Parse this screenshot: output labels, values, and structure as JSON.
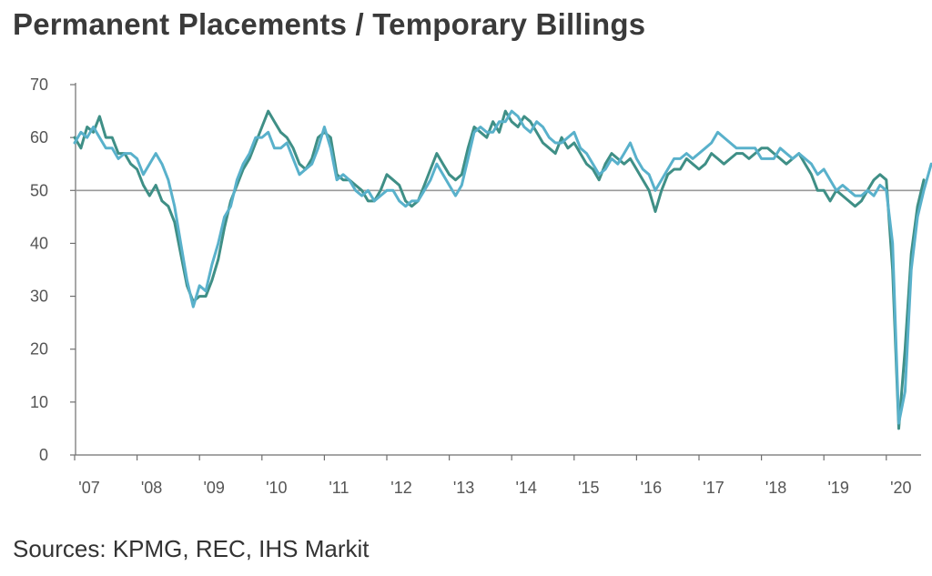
{
  "title": "Permanent Placements / Temporary Billings",
  "source": "Sources: KPMG, REC, IHS Markit",
  "colors": {
    "permanent": "#3f8f86",
    "temporary": "#59b1cb",
    "reference": "#9a9a9a",
    "axis": "#6f6f6f"
  },
  "chart_data": {
    "type": "line",
    "title": "Permanent Placements / Temporary Billings",
    "xlabel": "",
    "ylabel": "",
    "ylim": [
      0,
      70
    ],
    "yticks": [
      0,
      10,
      20,
      30,
      40,
      50,
      60,
      70
    ],
    "xlim": [
      2007.0,
      2020.72
    ],
    "xticks": [
      {
        "value": 2007,
        "label": "'07"
      },
      {
        "value": 2008,
        "label": "'08"
      },
      {
        "value": 2009,
        "label": "'09"
      },
      {
        "value": 2010,
        "label": "'10"
      },
      {
        "value": 2011,
        "label": "'11"
      },
      {
        "value": 2012,
        "label": "'12"
      },
      {
        "value": 2013,
        "label": "'13"
      },
      {
        "value": 2014,
        "label": "'14"
      },
      {
        "value": 2015,
        "label": "'15"
      },
      {
        "value": 2016,
        "label": "'16"
      },
      {
        "value": 2017,
        "label": "'17"
      },
      {
        "value": 2018,
        "label": "'18"
      },
      {
        "value": 2019,
        "label": "'19"
      },
      {
        "value": 2020,
        "label": "'20"
      }
    ],
    "reference_line": 50,
    "grid": false,
    "legend": "none",
    "series": [
      {
        "color": "#3f8f86",
        "points": [
          [
            2007.0,
            60
          ],
          [
            2007.1,
            58
          ],
          [
            2007.2,
            62
          ],
          [
            2007.3,
            61
          ],
          [
            2007.4,
            64
          ],
          [
            2007.5,
            60
          ],
          [
            2007.6,
            60
          ],
          [
            2007.7,
            57
          ],
          [
            2007.8,
            57
          ],
          [
            2007.9,
            55
          ],
          [
            2008.0,
            54
          ],
          [
            2008.1,
            51
          ],
          [
            2008.2,
            49
          ],
          [
            2008.3,
            51
          ],
          [
            2008.4,
            48
          ],
          [
            2008.5,
            47
          ],
          [
            2008.6,
            44
          ],
          [
            2008.7,
            38
          ],
          [
            2008.8,
            32
          ],
          [
            2008.9,
            29
          ],
          [
            2009.0,
            30
          ],
          [
            2009.1,
            30
          ],
          [
            2009.2,
            33
          ],
          [
            2009.3,
            37
          ],
          [
            2009.4,
            43
          ],
          [
            2009.5,
            48
          ],
          [
            2009.6,
            51
          ],
          [
            2009.7,
            54
          ],
          [
            2009.8,
            56
          ],
          [
            2009.9,
            59
          ],
          [
            2010.0,
            62
          ],
          [
            2010.1,
            65
          ],
          [
            2010.2,
            63
          ],
          [
            2010.3,
            61
          ],
          [
            2010.4,
            60
          ],
          [
            2010.5,
            58
          ],
          [
            2010.6,
            55
          ],
          [
            2010.7,
            54
          ],
          [
            2010.8,
            56
          ],
          [
            2010.9,
            60
          ],
          [
            2011.0,
            61
          ],
          [
            2011.1,
            60
          ],
          [
            2011.2,
            53
          ],
          [
            2011.3,
            52
          ],
          [
            2011.4,
            52
          ],
          [
            2011.5,
            51
          ],
          [
            2011.6,
            50
          ],
          [
            2011.7,
            48
          ],
          [
            2011.8,
            48
          ],
          [
            2011.9,
            50
          ],
          [
            2012.0,
            53
          ],
          [
            2012.1,
            52
          ],
          [
            2012.2,
            51
          ],
          [
            2012.3,
            48
          ],
          [
            2012.4,
            47
          ],
          [
            2012.5,
            48
          ],
          [
            2012.6,
            51
          ],
          [
            2012.7,
            54
          ],
          [
            2012.8,
            57
          ],
          [
            2012.9,
            55
          ],
          [
            2013.0,
            53
          ],
          [
            2013.1,
            52
          ],
          [
            2013.2,
            53
          ],
          [
            2013.3,
            58
          ],
          [
            2013.4,
            62
          ],
          [
            2013.5,
            61
          ],
          [
            2013.6,
            60
          ],
          [
            2013.7,
            63
          ],
          [
            2013.8,
            61
          ],
          [
            2013.9,
            65
          ],
          [
            2014.0,
            63
          ],
          [
            2014.1,
            62
          ],
          [
            2014.2,
            64
          ],
          [
            2014.3,
            63
          ],
          [
            2014.4,
            61
          ],
          [
            2014.5,
            59
          ],
          [
            2014.6,
            58
          ],
          [
            2014.7,
            57
          ],
          [
            2014.8,
            60
          ],
          [
            2014.9,
            58
          ],
          [
            2015.0,
            59
          ],
          [
            2015.1,
            57
          ],
          [
            2015.2,
            55
          ],
          [
            2015.3,
            54
          ],
          [
            2015.4,
            52
          ],
          [
            2015.5,
            55
          ],
          [
            2015.6,
            57
          ],
          [
            2015.7,
            56
          ],
          [
            2015.8,
            55
          ],
          [
            2015.9,
            56
          ],
          [
            2016.0,
            54
          ],
          [
            2016.1,
            52
          ],
          [
            2016.2,
            50
          ],
          [
            2016.3,
            46
          ],
          [
            2016.4,
            50
          ],
          [
            2016.5,
            53
          ],
          [
            2016.6,
            54
          ],
          [
            2016.7,
            54
          ],
          [
            2016.8,
            56
          ],
          [
            2016.9,
            55
          ],
          [
            2017.0,
            54
          ],
          [
            2017.1,
            55
          ],
          [
            2017.2,
            57
          ],
          [
            2017.3,
            56
          ],
          [
            2017.4,
            55
          ],
          [
            2017.5,
            56
          ],
          [
            2017.6,
            57
          ],
          [
            2017.7,
            57
          ],
          [
            2017.8,
            56
          ],
          [
            2017.9,
            57
          ],
          [
            2018.0,
            58
          ],
          [
            2018.1,
            58
          ],
          [
            2018.2,
            57
          ],
          [
            2018.3,
            56
          ],
          [
            2018.4,
            55
          ],
          [
            2018.5,
            56
          ],
          [
            2018.6,
            57
          ],
          [
            2018.7,
            55
          ],
          [
            2018.8,
            53
          ],
          [
            2018.9,
            50
          ],
          [
            2019.0,
            50
          ],
          [
            2019.1,
            48
          ],
          [
            2019.2,
            50
          ],
          [
            2019.3,
            49
          ],
          [
            2019.4,
            48
          ],
          [
            2019.5,
            47
          ],
          [
            2019.6,
            48
          ],
          [
            2019.7,
            50
          ],
          [
            2019.8,
            52
          ],
          [
            2019.9,
            53
          ],
          [
            2020.0,
            52
          ],
          [
            2020.1,
            35
          ],
          [
            2020.2,
            5
          ],
          [
            2020.3,
            20
          ],
          [
            2020.4,
            38
          ],
          [
            2020.5,
            47
          ],
          [
            2020.6,
            52
          ]
        ]
      },
      {
        "color": "#59b1cb",
        "points": [
          [
            2007.0,
            59
          ],
          [
            2007.1,
            61
          ],
          [
            2007.2,
            60
          ],
          [
            2007.3,
            62
          ],
          [
            2007.4,
            60
          ],
          [
            2007.5,
            58
          ],
          [
            2007.6,
            58
          ],
          [
            2007.7,
            56
          ],
          [
            2007.8,
            57
          ],
          [
            2007.9,
            57
          ],
          [
            2008.0,
            56
          ],
          [
            2008.1,
            53
          ],
          [
            2008.2,
            55
          ],
          [
            2008.3,
            57
          ],
          [
            2008.4,
            55
          ],
          [
            2008.5,
            52
          ],
          [
            2008.6,
            47
          ],
          [
            2008.7,
            40
          ],
          [
            2008.8,
            33
          ],
          [
            2008.9,
            28
          ],
          [
            2009.0,
            32
          ],
          [
            2009.1,
            31
          ],
          [
            2009.2,
            36
          ],
          [
            2009.3,
            40
          ],
          [
            2009.4,
            45
          ],
          [
            2009.5,
            47
          ],
          [
            2009.6,
            52
          ],
          [
            2009.7,
            55
          ],
          [
            2009.8,
            57
          ],
          [
            2009.9,
            60
          ],
          [
            2010.0,
            60
          ],
          [
            2010.1,
            61
          ],
          [
            2010.2,
            58
          ],
          [
            2010.3,
            58
          ],
          [
            2010.4,
            59
          ],
          [
            2010.5,
            56
          ],
          [
            2010.6,
            53
          ],
          [
            2010.7,
            54
          ],
          [
            2010.8,
            55
          ],
          [
            2010.9,
            58
          ],
          [
            2011.0,
            62
          ],
          [
            2011.1,
            58
          ],
          [
            2011.2,
            52
          ],
          [
            2011.3,
            53
          ],
          [
            2011.4,
            52
          ],
          [
            2011.5,
            50
          ],
          [
            2011.6,
            49
          ],
          [
            2011.7,
            50
          ],
          [
            2011.8,
            48
          ],
          [
            2011.9,
            49
          ],
          [
            2012.0,
            50
          ],
          [
            2012.1,
            50
          ],
          [
            2012.2,
            48
          ],
          [
            2012.3,
            47
          ],
          [
            2012.4,
            48
          ],
          [
            2012.5,
            48
          ],
          [
            2012.6,
            50
          ],
          [
            2012.7,
            52
          ],
          [
            2012.8,
            55
          ],
          [
            2012.9,
            53
          ],
          [
            2013.0,
            51
          ],
          [
            2013.1,
            49
          ],
          [
            2013.2,
            51
          ],
          [
            2013.3,
            56
          ],
          [
            2013.4,
            61
          ],
          [
            2013.5,
            62
          ],
          [
            2013.6,
            61
          ],
          [
            2013.7,
            61
          ],
          [
            2013.8,
            63
          ],
          [
            2013.9,
            63
          ],
          [
            2014.0,
            65
          ],
          [
            2014.1,
            64
          ],
          [
            2014.2,
            62
          ],
          [
            2014.3,
            61
          ],
          [
            2014.4,
            63
          ],
          [
            2014.5,
            62
          ],
          [
            2014.6,
            60
          ],
          [
            2014.7,
            59
          ],
          [
            2014.8,
            59
          ],
          [
            2014.9,
            60
          ],
          [
            2015.0,
            61
          ],
          [
            2015.1,
            58
          ],
          [
            2015.2,
            57
          ],
          [
            2015.3,
            55
          ],
          [
            2015.4,
            53
          ],
          [
            2015.5,
            54
          ],
          [
            2015.6,
            56
          ],
          [
            2015.7,
            55
          ],
          [
            2015.8,
            57
          ],
          [
            2015.9,
            59
          ],
          [
            2016.0,
            56
          ],
          [
            2016.1,
            54
          ],
          [
            2016.2,
            53
          ],
          [
            2016.3,
            50
          ],
          [
            2016.4,
            52
          ],
          [
            2016.5,
            54
          ],
          [
            2016.6,
            56
          ],
          [
            2016.7,
            56
          ],
          [
            2016.8,
            57
          ],
          [
            2016.9,
            56
          ],
          [
            2017.0,
            57
          ],
          [
            2017.1,
            58
          ],
          [
            2017.2,
            59
          ],
          [
            2017.3,
            61
          ],
          [
            2017.4,
            60
          ],
          [
            2017.5,
            59
          ],
          [
            2017.6,
            58
          ],
          [
            2017.7,
            58
          ],
          [
            2017.8,
            58
          ],
          [
            2017.9,
            58
          ],
          [
            2018.0,
            56
          ],
          [
            2018.1,
            56
          ],
          [
            2018.2,
            56
          ],
          [
            2018.3,
            58
          ],
          [
            2018.4,
            57
          ],
          [
            2018.5,
            56
          ],
          [
            2018.6,
            57
          ],
          [
            2018.7,
            56
          ],
          [
            2018.8,
            55
          ],
          [
            2018.9,
            53
          ],
          [
            2019.0,
            54
          ],
          [
            2019.1,
            52
          ],
          [
            2019.2,
            50
          ],
          [
            2019.3,
            51
          ],
          [
            2019.4,
            50
          ],
          [
            2019.5,
            49
          ],
          [
            2019.6,
            49
          ],
          [
            2019.7,
            50
          ],
          [
            2019.8,
            49
          ],
          [
            2019.9,
            51
          ],
          [
            2020.0,
            50
          ],
          [
            2020.1,
            40
          ],
          [
            2020.2,
            6
          ],
          [
            2020.3,
            12
          ],
          [
            2020.4,
            35
          ],
          [
            2020.5,
            45
          ],
          [
            2020.6,
            50
          ],
          [
            2020.72,
            55
          ]
        ]
      }
    ]
  }
}
